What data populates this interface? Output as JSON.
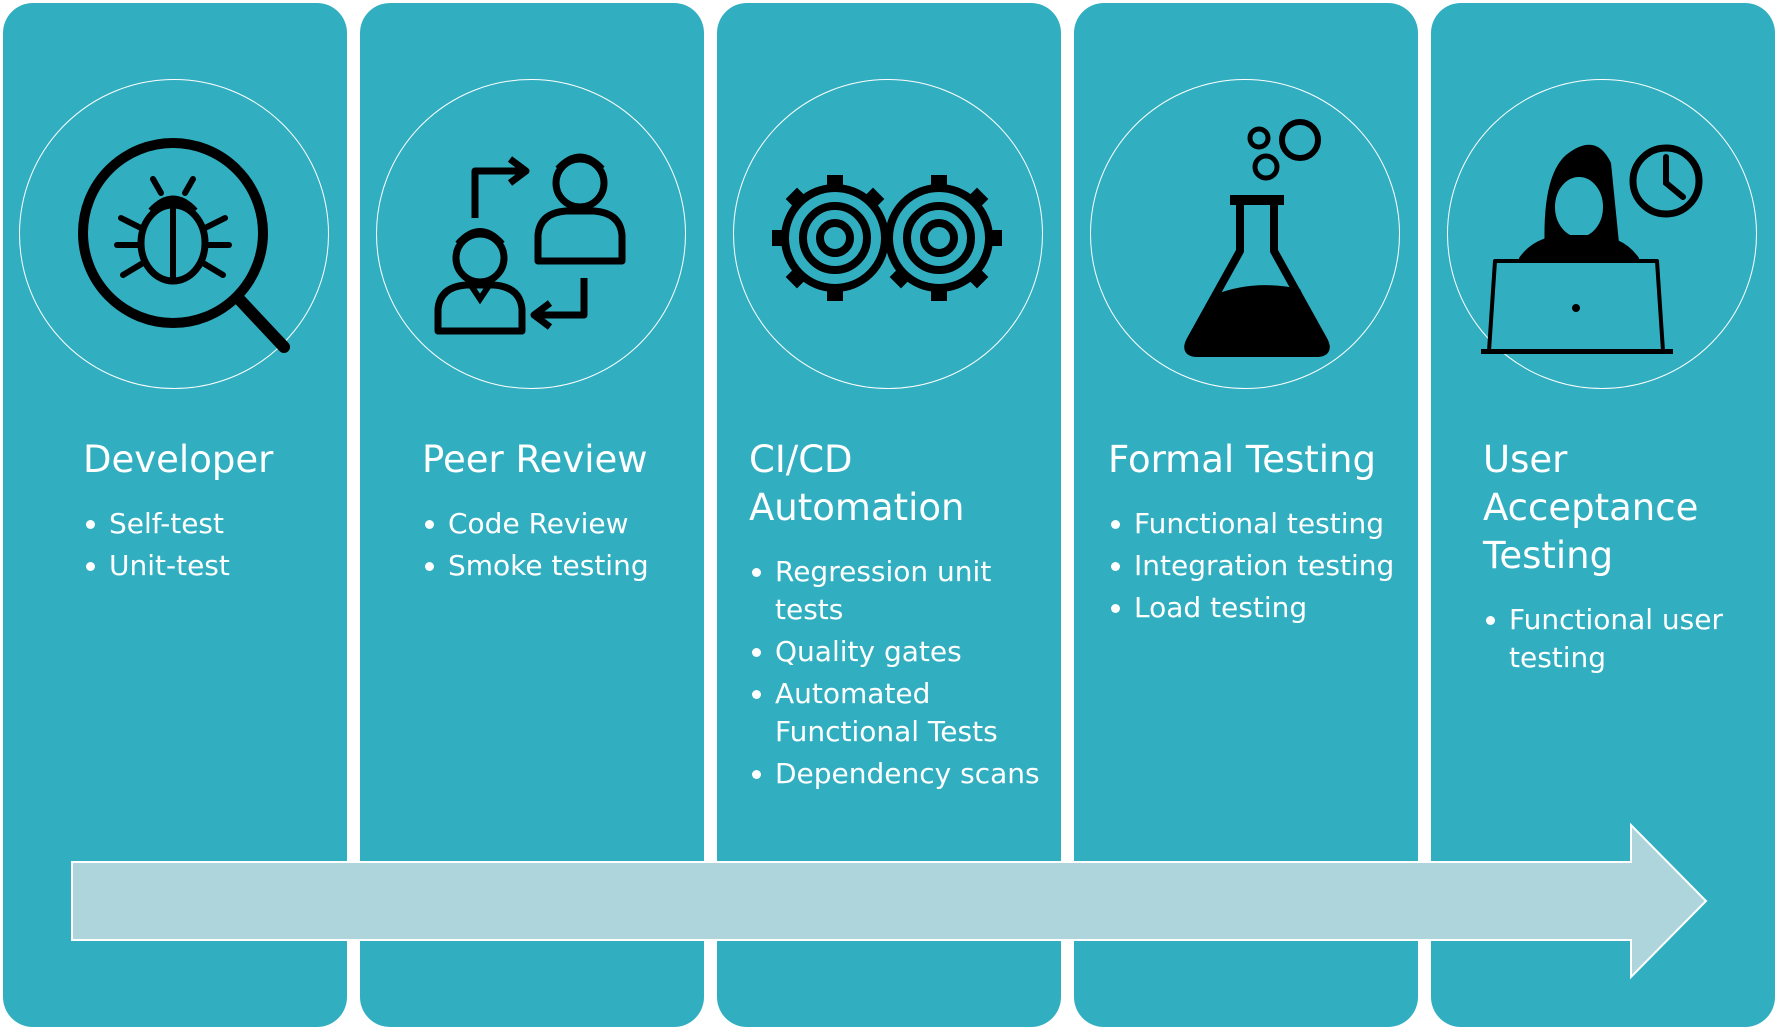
{
  "stages": [
    {
      "title": "Developer",
      "bullets": [
        "Self-test",
        "Unit-test"
      ]
    },
    {
      "title": "Peer Review",
      "bullets": [
        "Code Review",
        "Smoke testing"
      ]
    },
    {
      "title": "CI/CD Automation",
      "bullets": [
        "Regression unit tests",
        "Quality gates",
        "Automated Functional Tests",
        "Dependency scans"
      ]
    },
    {
      "title": "Formal Testing",
      "bullets": [
        "Functional testing",
        "Integration testing",
        "Load testing"
      ]
    },
    {
      "title": "User Acceptance Testing",
      "bullets": [
        "Functional user testing"
      ]
    }
  ],
  "icons": [
    "bug-search-icon",
    "peer-exchange-icon",
    "gears-icon",
    "flask-icon",
    "user-laptop-clock-icon"
  ],
  "colors": {
    "panel": "#31afc1",
    "arrow": "#aed5dc",
    "icon": "#000000",
    "text": "#ffffff"
  }
}
